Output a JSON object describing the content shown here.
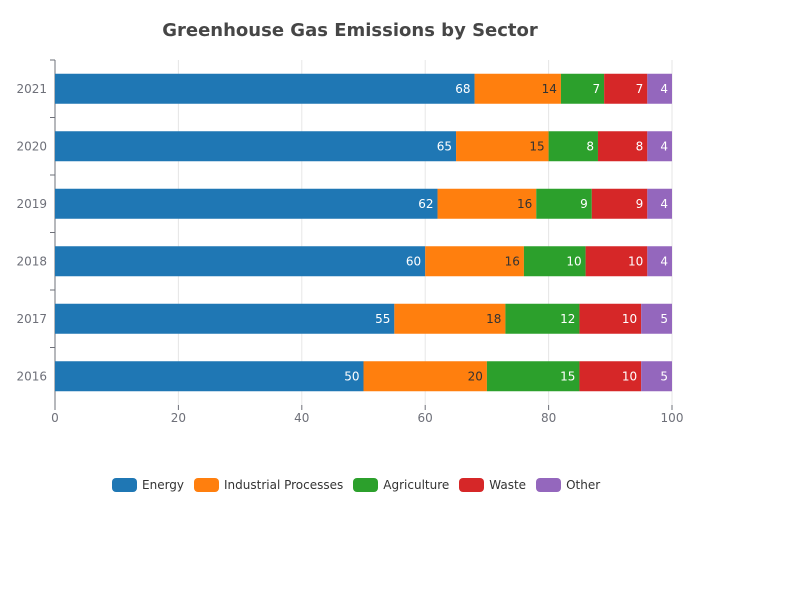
{
  "chart_data": {
    "type": "bar",
    "orientation": "horizontal",
    "stacked": true,
    "title": "Greenhouse Gas Emissions by Sector",
    "categories": [
      "2016",
      "2017",
      "2018",
      "2019",
      "2020",
      "2021"
    ],
    "series": [
      {
        "name": "Energy",
        "color": "#1f77b4",
        "values": [
          50,
          55,
          60,
          62,
          65,
          68
        ]
      },
      {
        "name": "Industrial Processes",
        "color": "#ff7f0e",
        "values": [
          20,
          18,
          16,
          16,
          15,
          14
        ]
      },
      {
        "name": "Agriculture",
        "color": "#2ca02c",
        "values": [
          15,
          12,
          10,
          9,
          8,
          7
        ]
      },
      {
        "name": "Waste",
        "color": "#d62728",
        "values": [
          10,
          10,
          10,
          9,
          8,
          7
        ]
      },
      {
        "name": "Other",
        "color": "#9467bd",
        "values": [
          5,
          5,
          4,
          4,
          4,
          4
        ]
      }
    ],
    "xlim": [
      0,
      100
    ],
    "xticks": [
      "0",
      "20",
      "40",
      "60",
      "80",
      "100"
    ],
    "grid": true,
    "legend_position": "bottom"
  }
}
